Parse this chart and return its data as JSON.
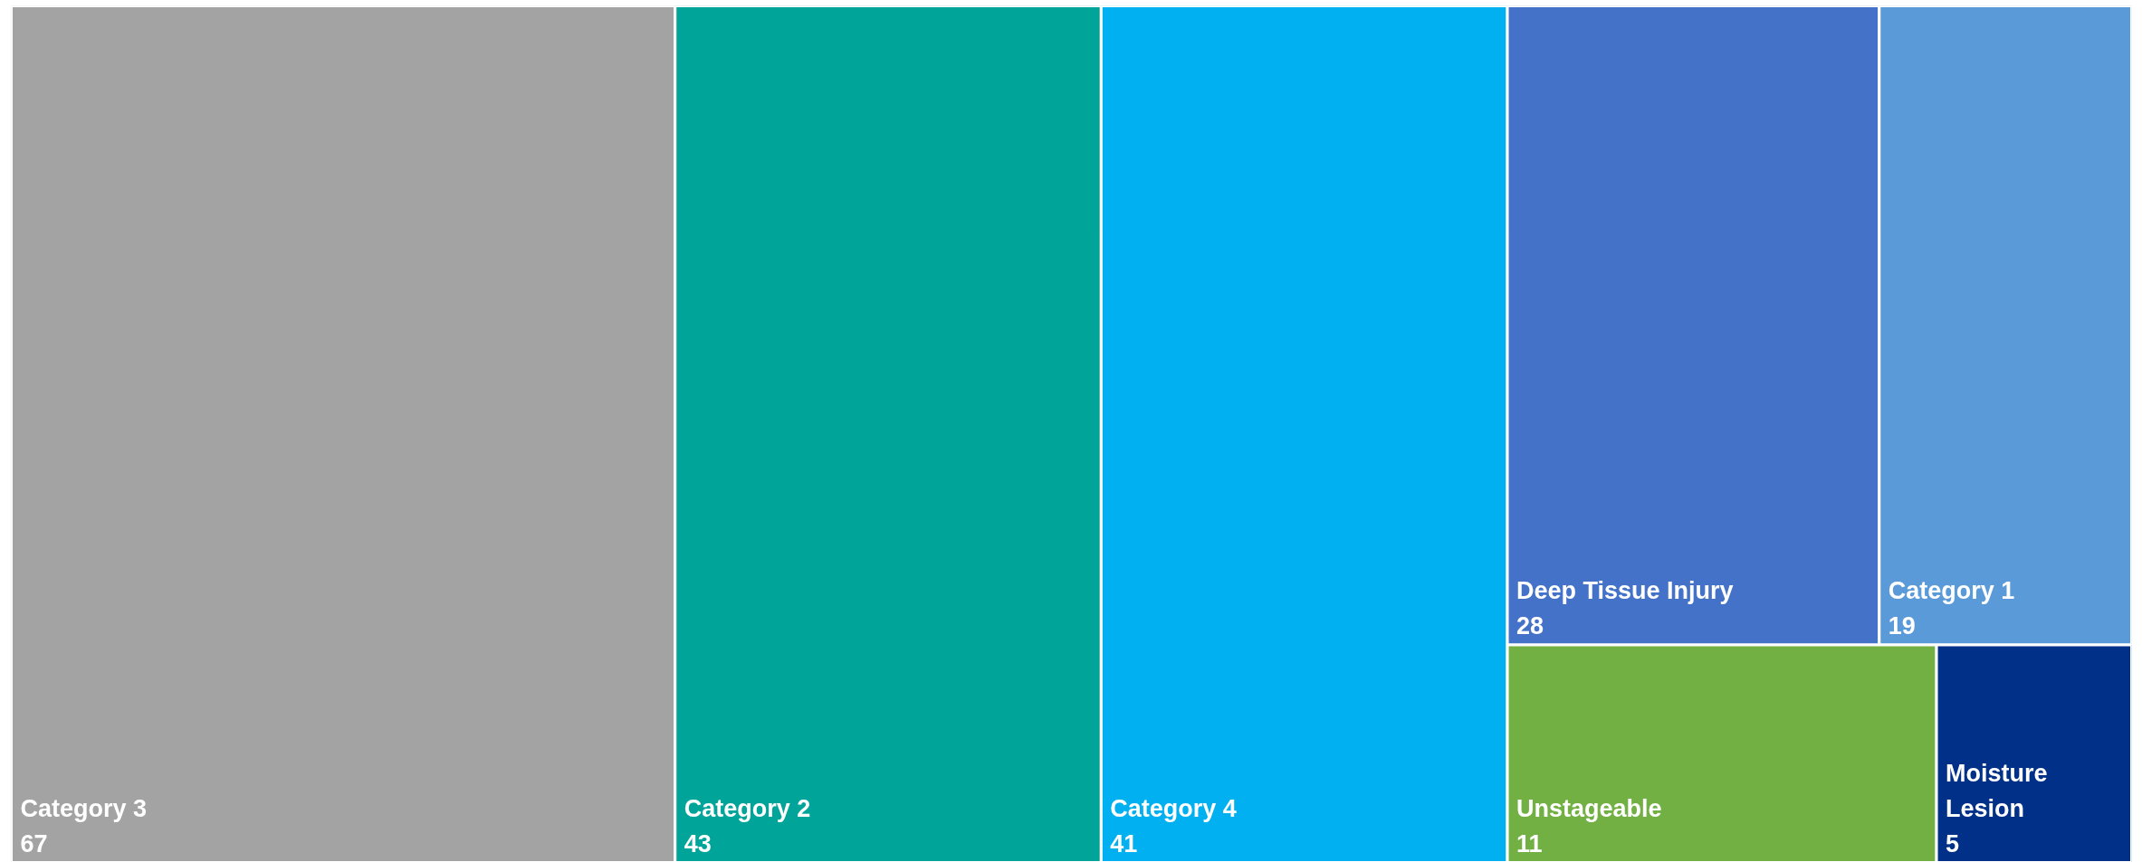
{
  "chart_data": {
    "type": "other",
    "categories": [
      "Category 3",
      "Category 2",
      "Category 4",
      "Deep Tissue Injury",
      "Category 1",
      "Unstageable",
      "Moisture Lesion"
    ],
    "values": [
      67,
      43,
      41,
      28,
      19,
      11,
      5
    ],
    "colors": [
      "#a3a3a3",
      "#00a499",
      "#00b0f0",
      "#4472c8",
      "#5a9ad8",
      "#72b044",
      "#003087"
    ],
    "data_labels": true
  }
}
